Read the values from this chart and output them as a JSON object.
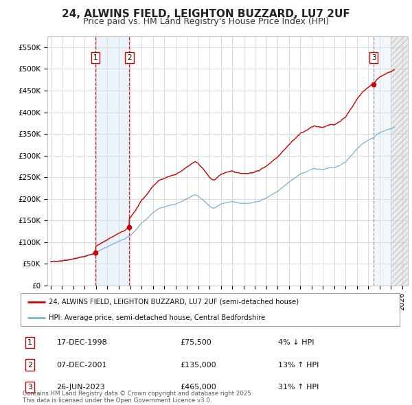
{
  "title": "24, ALWINS FIELD, LEIGHTON BUZZARD, LU7 2UF",
  "subtitle": "Price paid vs. HM Land Registry's House Price Index (HPI)",
  "background_color": "#ffffff",
  "grid_color": "#cccccc",
  "plot_bg_color": "#ffffff",
  "red_line_color": "#cc0000",
  "blue_line_color": "#7bafd4",
  "ylim": [
    0,
    575000
  ],
  "yticks": [
    0,
    50000,
    100000,
    150000,
    200000,
    250000,
    300000,
    350000,
    400000,
    450000,
    500000,
    550000
  ],
  "ytick_labels": [
    "£0",
    "£50K",
    "£100K",
    "£150K",
    "£200K",
    "£250K",
    "£300K",
    "£350K",
    "£400K",
    "£450K",
    "£500K",
    "£550K"
  ],
  "xlim_start": 1994.7,
  "xlim_end": 2026.5,
  "xticks": [
    1995,
    1996,
    1997,
    1998,
    1999,
    2000,
    2001,
    2002,
    2003,
    2004,
    2005,
    2006,
    2007,
    2008,
    2009,
    2010,
    2011,
    2012,
    2013,
    2014,
    2015,
    2016,
    2017,
    2018,
    2019,
    2020,
    2021,
    2022,
    2023,
    2024,
    2025,
    2026
  ],
  "sale_events": [
    {
      "x": 1998.95,
      "label": "1",
      "price": 75500,
      "date": "17-DEC-1998",
      "pct": "4%",
      "dir": "↓",
      "line_color": "#cc0000",
      "line_style": "--"
    },
    {
      "x": 2001.93,
      "label": "2",
      "price": 135000,
      "date": "07-DEC-2001",
      "pct": "13%",
      "dir": "↑",
      "line_color": "#cc0000",
      "line_style": "--"
    },
    {
      "x": 2023.48,
      "label": "3",
      "price": 465000,
      "date": "26-JUN-2023",
      "pct": "31%",
      "dir": "↑",
      "line_color": "#888888",
      "line_style": "--"
    }
  ],
  "legend_entries": [
    {
      "color": "#cc0000",
      "label": "24, ALWINS FIELD, LEIGHTON BUZZARD, LU7 2UF (semi-detached house)"
    },
    {
      "color": "#7bafd4",
      "label": "HPI: Average price, semi-detached house, Central Bedfordshire"
    }
  ],
  "footnote": "Contains HM Land Registry data © Crown copyright and database right 2025.\nThis data is licensed under the Open Government Licence v3.0.",
  "title_fontsize": 11,
  "subtitle_fontsize": 9,
  "tick_fontsize": 7.5
}
